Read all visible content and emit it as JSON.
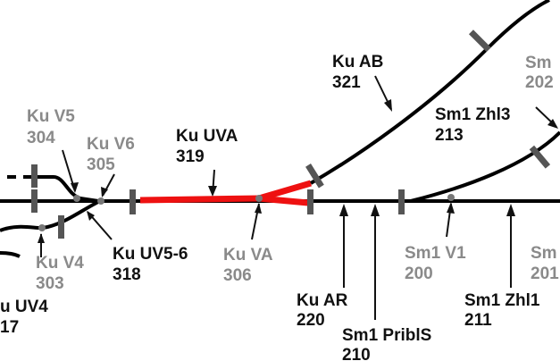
{
  "colors": {
    "track": "#000000",
    "highlight": "#ee1111",
    "marker": "#555555",
    "label_gray": "#8a8a8a",
    "label_black": "#111111"
  },
  "labels": {
    "ku_v5": {
      "name": "Ku V5",
      "num": "304"
    },
    "ku_v6": {
      "name": "Ku V6",
      "num": "305"
    },
    "ku_v4": {
      "name": "Ku V4",
      "num": "303"
    },
    "ku_uv4": {
      "name": "u UV4",
      "num": "17"
    },
    "ku_uv56": {
      "name": "Ku UV5-6",
      "num": "318"
    },
    "ku_uva": {
      "name": "Ku UVA",
      "num": "319"
    },
    "ku_va": {
      "name": "Ku VA",
      "num": "306"
    },
    "ku_ab": {
      "name": "Ku AB",
      "num": "321"
    },
    "ku_ar": {
      "name": "Ku AR",
      "num": "220"
    },
    "sm1_pribls": {
      "name": "Sm1 PriblS",
      "num": "210"
    },
    "sm1_v1": {
      "name": "Sm1 V1",
      "num": "200"
    },
    "sm1_zhl3": {
      "name": "Sm1 Zhl3",
      "num": "213"
    },
    "sm1_zhl1": {
      "name": "Sm1 Zhl1",
      "num": "211"
    },
    "sm1_top_right": {
      "name": "Sm",
      "num": "202"
    },
    "sm1_right": {
      "name": "Sm",
      "num": "201"
    }
  }
}
